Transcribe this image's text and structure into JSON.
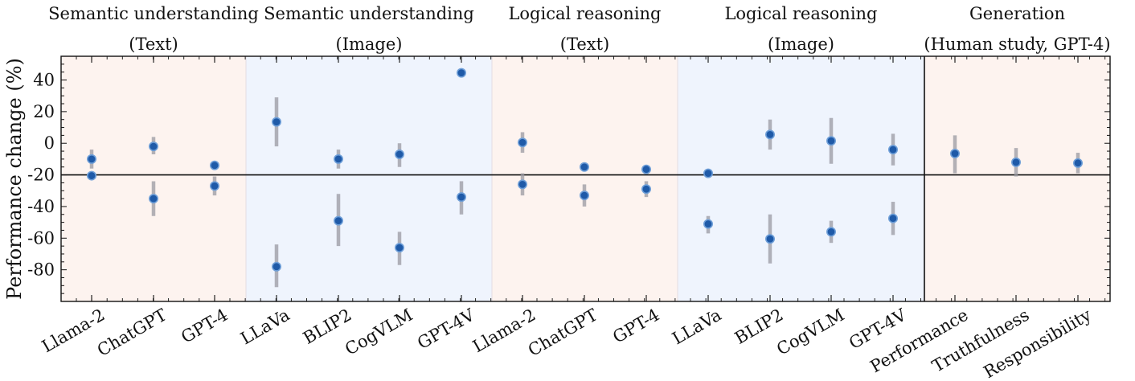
{
  "chart_data": {
    "type": "scatter",
    "ylabel": "Performance change (%)",
    "ylim": [
      -100,
      55
    ],
    "yticks": [
      40,
      20,
      0,
      -20,
      -40,
      -60,
      -80
    ],
    "ytick_labels": [
      "40",
      "20",
      "0",
      "-20",
      "-40",
      "-60",
      "-80"
    ],
    "reference_line_y": -20,
    "groups": [
      {
        "title_line1": "Semantic understanding",
        "title_line2": "(Text)",
        "shade": "#fdf3ef",
        "categories": [
          "Llama-2",
          "ChatGPT",
          "GPT-4"
        ],
        "points": [
          {
            "cat": 0,
            "y": -10,
            "lo": -16,
            "hi": -4
          },
          {
            "cat": 0,
            "y": -20.5,
            "lo": -21.5,
            "hi": -19.5
          },
          {
            "cat": 1,
            "y": -2,
            "lo": -7,
            "hi": 4
          },
          {
            "cat": 1,
            "y": -35,
            "lo": -46,
            "hi": -24
          },
          {
            "cat": 2,
            "y": -14,
            "lo": -16,
            "hi": -12
          },
          {
            "cat": 2,
            "y": -27,
            "lo": -33,
            "hi": -21
          }
        ]
      },
      {
        "title_line1": "Semantic understanding",
        "title_line2": "(Image)",
        "shade": "#eff4fd",
        "categories": [
          "LLaVa",
          "BLIP2",
          "CogVLM",
          "GPT-4V"
        ],
        "points": [
          {
            "cat": 0,
            "y": 13.5,
            "lo": -2,
            "hi": 29
          },
          {
            "cat": 0,
            "y": -78,
            "lo": -91,
            "hi": -64
          },
          {
            "cat": 1,
            "y": -10,
            "lo": -16,
            "hi": -4
          },
          {
            "cat": 1,
            "y": -49,
            "lo": -65,
            "hi": -32
          },
          {
            "cat": 2,
            "y": -7,
            "lo": -15,
            "hi": 0
          },
          {
            "cat": 2,
            "y": -66,
            "lo": -77,
            "hi": -56
          },
          {
            "cat": 3,
            "y": 44.5,
            "lo": 42,
            "hi": 47
          },
          {
            "cat": 3,
            "y": -34,
            "lo": -45,
            "hi": -24
          }
        ]
      },
      {
        "title_line1": "Logical reasoning",
        "title_line2": "(Text)",
        "shade": "#fdf3ef",
        "categories": [
          "Llama-2",
          "ChatGPT",
          "GPT-4"
        ],
        "points": [
          {
            "cat": 0,
            "y": 0.5,
            "lo": -6,
            "hi": 7
          },
          {
            "cat": 0,
            "y": -26,
            "lo": -33,
            "hi": -19
          },
          {
            "cat": 1,
            "y": -15,
            "lo": -17,
            "hi": -13
          },
          {
            "cat": 1,
            "y": -33,
            "lo": -40,
            "hi": -26
          },
          {
            "cat": 2,
            "y": -16.5,
            "lo": -18,
            "hi": -15
          },
          {
            "cat": 2,
            "y": -29,
            "lo": -34,
            "hi": -24
          }
        ]
      },
      {
        "title_line1": "Logical reasoning",
        "title_line2": "(Image)",
        "shade": "#eff4fd",
        "categories": [
          "LLaVa",
          "BLIP2",
          "CogVLM",
          "GPT-4V"
        ],
        "points": [
          {
            "cat": 0,
            "y": -19,
            "lo": -20,
            "hi": -18
          },
          {
            "cat": 0,
            "y": -51,
            "lo": -57,
            "hi": -46
          },
          {
            "cat": 1,
            "y": 5.5,
            "lo": -4,
            "hi": 15
          },
          {
            "cat": 1,
            "y": -60.5,
            "lo": -76,
            "hi": -45
          },
          {
            "cat": 2,
            "y": 1.5,
            "lo": -13,
            "hi": 16
          },
          {
            "cat": 2,
            "y": -56,
            "lo": -63,
            "hi": -49
          },
          {
            "cat": 3,
            "y": -4,
            "lo": -14,
            "hi": 6
          },
          {
            "cat": 3,
            "y": -47.5,
            "lo": -58,
            "hi": -37
          }
        ]
      },
      {
        "title_line1": "Generation",
        "title_line2": "(Human study, GPT-4)",
        "shade": "#fdf3ef",
        "categories": [
          "Performance",
          "Truthfulness",
          "Responsibility"
        ],
        "points": [
          {
            "cat": 0,
            "y": -6.5,
            "lo": -19,
            "hi": 5
          },
          {
            "cat": 1,
            "y": -12,
            "lo": -21,
            "hi": -3
          },
          {
            "cat": 2,
            "y": -12.5,
            "lo": -19,
            "hi": -6
          }
        ]
      }
    ]
  }
}
